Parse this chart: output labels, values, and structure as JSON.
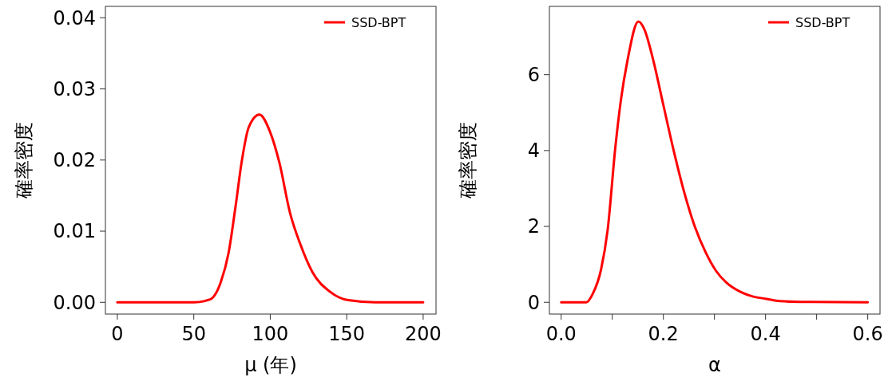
{
  "chart_data": [
    {
      "type": "line",
      "xlabel": "μ (年)",
      "ylabel": "確率密度",
      "legend": "top right",
      "grid": false,
      "xlim": [
        -7.8,
        208.4
      ],
      "ylim": [
        -0.00165,
        0.0416
      ],
      "xticks": [
        0,
        50,
        100,
        150,
        200
      ],
      "yticks": [
        {
          "value": 0,
          "label": "0.00"
        },
        {
          "value": 0.01,
          "label": "0.01"
        },
        {
          "value": 0.02,
          "label": "0.02"
        },
        {
          "value": 0.03,
          "label": "0.03"
        },
        {
          "value": 0.04,
          "label": "0.04"
        }
      ],
      "series": [
        {
          "name": "SSD-BPT",
          "color": "#ff0000",
          "x": [
            0,
            50.2,
            60.6,
            67.6,
            72.8,
            77.2,
            81.5,
            85.9,
            92.9,
            99.8,
            105.9,
            112.9,
            119.8,
            127.7,
            139,
            151,
            168.6,
            200
          ],
          "values": [
            0,
            0,
            0.0004,
            0.0028,
            0.007,
            0.0133,
            0.02,
            0.0246,
            0.0264,
            0.024,
            0.0197,
            0.0126,
            0.0081,
            0.0042,
            0.0015,
            0.0003,
            0,
            0
          ]
        }
      ]
    },
    {
      "type": "line",
      "xlabel": "α",
      "ylabel": "確率密度",
      "legend": "top right",
      "grid": false,
      "xlim": [
        -0.023,
        0.624
      ],
      "ylim": [
        -0.31,
        7.8
      ],
      "xticks": [
        {
          "value": 0,
          "label": "0.0"
        },
        {
          "value": 0.1,
          "label": null
        },
        {
          "value": 0.2,
          "label": "0.2"
        },
        {
          "value": 0.3,
          "label": null
        },
        {
          "value": 0.4,
          "label": "0.4"
        },
        {
          "value": 0.5,
          "label": null
        },
        {
          "value": 0.6,
          "label": "0.6"
        }
      ],
      "yticks": [
        0,
        2,
        4,
        6
      ],
      "series": [
        {
          "name": "SSD-BPT",
          "color": "#ff0000",
          "x": [
            0,
            0.049,
            0.062,
            0.078,
            0.091,
            0.106,
            0.117,
            0.13,
            0.151,
            0.163,
            0.179,
            0.2,
            0.22,
            0.241,
            0.262,
            0.283,
            0.303,
            0.324,
            0.35,
            0.376,
            0.402,
            0.428,
            0.469,
            0.6
          ],
          "values": [
            0,
            0,
            0.23,
            0.86,
            1.91,
            4.08,
            5.34,
            6.39,
            7.4,
            7.19,
            6.45,
            5.2,
            4.01,
            2.89,
            1.98,
            1.31,
            0.83,
            0.51,
            0.28,
            0.15,
            0.09,
            0.03,
            0.01,
            0
          ]
        }
      ]
    }
  ]
}
